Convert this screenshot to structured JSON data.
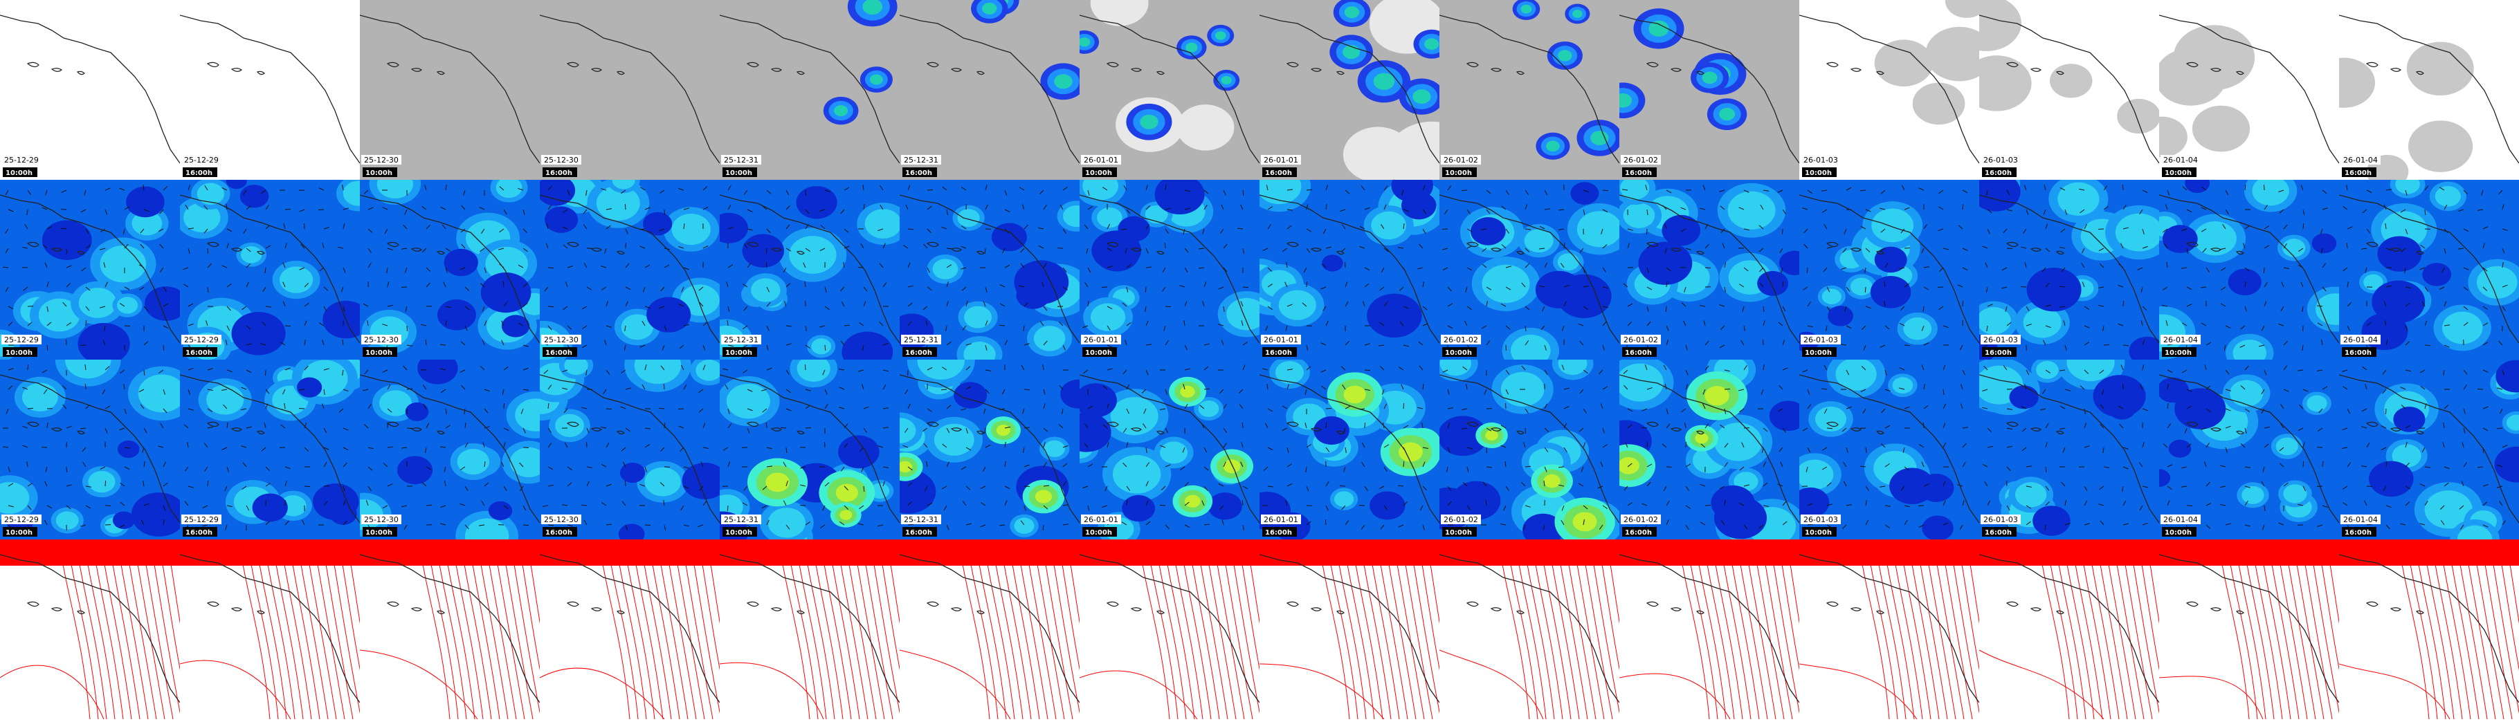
{
  "panels": [
    {
      "date": "25-12-29",
      "time": "10:00h"
    },
    {
      "date": "25-12-29",
      "time": "16:00h"
    },
    {
      "date": "25-12-30",
      "time": "10:00h"
    },
    {
      "date": "25-12-30",
      "time": "16:00h"
    },
    {
      "date": "25-12-31",
      "time": "10:00h"
    },
    {
      "date": "25-12-31",
      "time": "16:00h"
    },
    {
      "date": "26-01-01",
      "time": "10:00h"
    },
    {
      "date": "26-01-01",
      "time": "16:00h"
    },
    {
      "date": "26-01-02",
      "time": "10:00h"
    },
    {
      "date": "26-01-02",
      "time": "16:00h"
    },
    {
      "date": "26-01-03",
      "time": "10:00h"
    },
    {
      "date": "26-01-03",
      "time": "16:00h"
    },
    {
      "date": "26-01-04",
      "time": "10:00h"
    },
    {
      "date": "26-01-04",
      "time": "16:00h"
    }
  ]
}
